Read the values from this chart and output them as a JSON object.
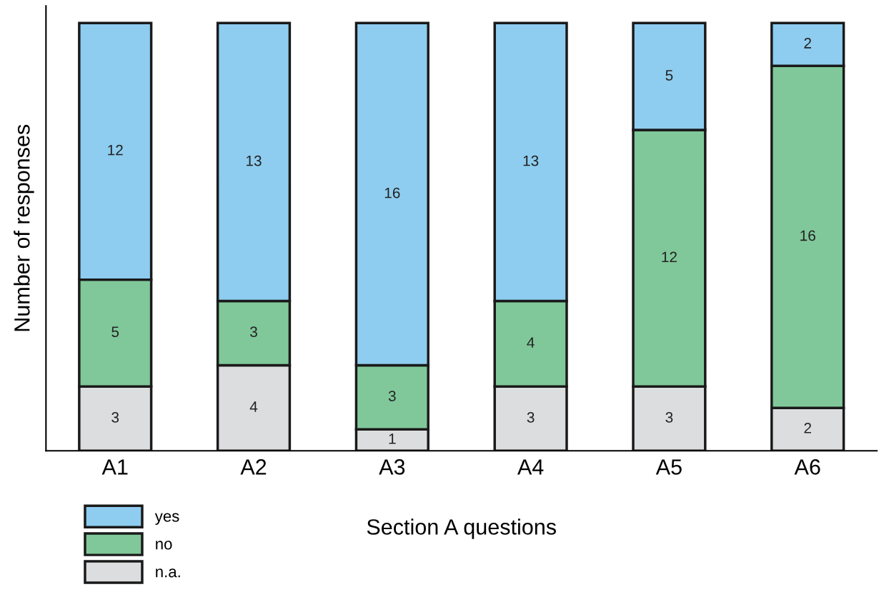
{
  "chart_data": {
    "type": "bar",
    "stacked": true,
    "xlabel": "Section A questions",
    "ylabel": "Number of responses",
    "categories": [
      "A1",
      "A2",
      "A3",
      "A4",
      "A5",
      "A6"
    ],
    "series": [
      {
        "name": "n.a.",
        "color": "#dcdddf",
        "values": [
          3,
          4,
          1,
          3,
          3,
          2
        ]
      },
      {
        "name": "no",
        "color": "#80c89a",
        "values": [
          5,
          3,
          3,
          4,
          12,
          16
        ]
      },
      {
        "name": "yes",
        "color": "#8ecdf0",
        "values": [
          12,
          13,
          16,
          13,
          5,
          2
        ]
      }
    ],
    "data_labels": true,
    "tick_labels": "x",
    "grid": false,
    "legend": "bottom left"
  }
}
